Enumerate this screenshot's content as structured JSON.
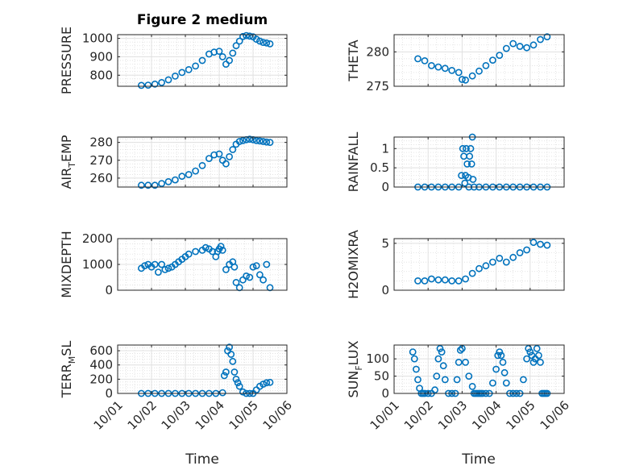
{
  "figure": {
    "title": "Figure 2 medium",
    "xlabel": "Time",
    "marker_color": "#0072BD",
    "x_ticks": [
      "10/01",
      "10/02",
      "10/03",
      "10/04",
      "10/05",
      "10/06"
    ]
  },
  "chart_data": [
    {
      "type": "scatter",
      "ylabel": "PRESSURE",
      "ylabel_main": "PRESSURE",
      "ylabel_sub": "",
      "ylabel_tail": "",
      "title": "Figure 2 medium",
      "ylim": [
        740,
        1020
      ],
      "yticks": [
        800,
        900,
        1000
      ],
      "xlim": [
        "10/01",
        "10/06"
      ],
      "grid": true,
      "series": [
        {
          "x": [
            1.7,
            1.9,
            2.1,
            2.3,
            2.5,
            2.7,
            2.9,
            3.1,
            3.3,
            3.5,
            3.7,
            3.85,
            4.0,
            4.1,
            4.2,
            4.3,
            4.4,
            4.5,
            4.6,
            4.7,
            4.8,
            4.9,
            5.0,
            5.1,
            5.2,
            5.3,
            5.4,
            5.5
          ],
          "y": [
            745,
            746,
            752,
            760,
            775,
            795,
            815,
            830,
            850,
            880,
            915,
            925,
            930,
            900,
            860,
            880,
            920,
            960,
            985,
            1010,
            1015,
            1012,
            1008,
            995,
            985,
            978,
            975,
            970
          ]
        }
      ]
    },
    {
      "type": "scatter",
      "ylabel": "THETA",
      "ylabel_main": "THETA",
      "ylabel_sub": "",
      "ylabel_tail": "",
      "ylim": [
        275,
        282.5
      ],
      "yticks": [
        275,
        280
      ],
      "xlim": [
        "10/01",
        "10/06"
      ],
      "grid": true,
      "series": [
        {
          "x": [
            1.7,
            1.9,
            2.1,
            2.3,
            2.5,
            2.7,
            2.9,
            3.0,
            3.1,
            3.3,
            3.5,
            3.7,
            3.9,
            4.1,
            4.3,
            4.5,
            4.7,
            4.9,
            5.1,
            5.3,
            5.5
          ],
          "y": [
            279.0,
            278.7,
            278.0,
            277.8,
            277.6,
            277.3,
            277.0,
            276.0,
            275.9,
            276.5,
            277.2,
            278.0,
            278.8,
            279.5,
            280.5,
            281.2,
            280.8,
            280.6,
            281.0,
            281.8,
            282.2
          ]
        }
      ]
    },
    {
      "type": "scatter",
      "ylabel": "AIR_TEMP",
      "ylabel_main": "AIR",
      "ylabel_sub": "T",
      "ylabel_tail": "EMP",
      "ylim": [
        255,
        283
      ],
      "yticks": [
        260,
        270,
        280
      ],
      "xlim": [
        "10/01",
        "10/06"
      ],
      "grid": true,
      "series": [
        {
          "x": [
            1.7,
            1.9,
            2.1,
            2.3,
            2.5,
            2.7,
            2.9,
            3.1,
            3.3,
            3.5,
            3.7,
            3.85,
            4.0,
            4.1,
            4.2,
            4.3,
            4.4,
            4.5,
            4.6,
            4.7,
            4.8,
            4.9,
            5.0,
            5.1,
            5.2,
            5.3,
            5.4,
            5.5
          ],
          "y": [
            256,
            256,
            256,
            257,
            258,
            259,
            261,
            262,
            264,
            267,
            271,
            273,
            273.5,
            270,
            268,
            272,
            276,
            279,
            280.5,
            281,
            281.5,
            281.8,
            281.5,
            281,
            280.8,
            280.5,
            280.2,
            280
          ]
        }
      ]
    },
    {
      "type": "scatter",
      "ylabel": "RAINFALL",
      "ylabel_main": "RAINFALL",
      "ylabel_sub": "",
      "ylabel_tail": "",
      "ylim": [
        0,
        1.3
      ],
      "yticks": [
        0,
        0.5,
        1
      ],
      "xlim": [
        "10/01",
        "10/06"
      ],
      "grid": true,
      "series": [
        {
          "x": [
            1.7,
            1.9,
            2.1,
            2.3,
            2.5,
            2.7,
            2.9,
            2.98,
            3.02,
            3.05,
            3.08,
            3.1,
            3.12,
            3.15,
            3.18,
            3.2,
            3.22,
            3.25,
            3.28,
            3.3,
            3.32,
            3.35,
            3.5,
            3.7,
            3.9,
            4.1,
            4.3,
            4.5,
            4.7,
            4.9,
            5.1,
            5.3,
            5.5
          ],
          "y": [
            0,
            0,
            0,
            0,
            0,
            0,
            0,
            0.3,
            1.0,
            0.8,
            0.1,
            0.3,
            1.0,
            0.6,
            0.25,
            0.0,
            0.8,
            1.0,
            0.6,
            1.3,
            0.2,
            0.0,
            0,
            0,
            0,
            0,
            0,
            0,
            0,
            0,
            0,
            0,
            0
          ]
        }
      ]
    },
    {
      "type": "scatter",
      "ylabel": "MIXDEPTH",
      "ylabel_main": "MIXDEPTH",
      "ylabel_sub": "",
      "ylabel_tail": "",
      "ylim": [
        0,
        2000
      ],
      "yticks": [
        0,
        1000,
        2000
      ],
      "xlim": [
        "10/01",
        "10/06"
      ],
      "grid": true,
      "series": [
        {
          "x": [
            1.7,
            1.8,
            1.9,
            2.0,
            2.1,
            2.2,
            2.3,
            2.4,
            2.5,
            2.6,
            2.7,
            2.8,
            2.9,
            3.0,
            3.1,
            3.3,
            3.5,
            3.6,
            3.7,
            3.8,
            3.9,
            3.95,
            4.0,
            4.05,
            4.1,
            4.2,
            4.3,
            4.4,
            4.45,
            4.5,
            4.6,
            4.7,
            4.8,
            4.9,
            5.0,
            5.1,
            5.2,
            5.3,
            5.4,
            5.5
          ],
          "y": [
            850,
            950,
            1000,
            900,
            1000,
            700,
            1000,
            800,
            850,
            900,
            1000,
            1100,
            1200,
            1300,
            1400,
            1500,
            1550,
            1650,
            1600,
            1500,
            1300,
            1500,
            1600,
            1700,
            1550,
            800,
            1000,
            1100,
            900,
            300,
            100,
            400,
            550,
            500,
            900,
            950,
            600,
            400,
            1000,
            100
          ]
        }
      ]
    },
    {
      "type": "scatter",
      "ylabel": "H2OMIXRA",
      "ylabel_main": "H2OMIXRA",
      "ylabel_sub": "",
      "ylabel_tail": "",
      "ylim": [
        0,
        5.5
      ],
      "yticks": [
        0,
        5
      ],
      "xlim": [
        "10/01",
        "10/06"
      ],
      "grid": true,
      "series": [
        {
          "x": [
            1.7,
            1.9,
            2.1,
            2.3,
            2.5,
            2.7,
            2.9,
            3.1,
            3.3,
            3.5,
            3.7,
            3.9,
            4.1,
            4.3,
            4.5,
            4.7,
            4.9,
            5.1,
            5.3,
            5.5
          ],
          "y": [
            1.0,
            1.0,
            1.2,
            1.1,
            1.1,
            1.0,
            1.0,
            1.2,
            1.8,
            2.3,
            2.6,
            3.0,
            3.4,
            3.0,
            3.5,
            4.0,
            4.3,
            5.1,
            4.9,
            4.8
          ]
        }
      ]
    },
    {
      "type": "scatter",
      "ylabel": "TERR_MSL",
      "ylabel_main": "TERR",
      "ylabel_sub": "M",
      "ylabel_tail": "SL",
      "ylim": [
        0,
        680
      ],
      "yticks": [
        0,
        200,
        400,
        600
      ],
      "xlim": [
        "10/01",
        "10/06"
      ],
      "grid": true,
      "series": [
        {
          "x": [
            1.7,
            1.9,
            2.1,
            2.3,
            2.5,
            2.7,
            2.9,
            3.1,
            3.3,
            3.5,
            3.7,
            3.9,
            4.1,
            4.15,
            4.2,
            4.25,
            4.3,
            4.35,
            4.4,
            4.45,
            4.5,
            4.55,
            4.6,
            4.7,
            4.8,
            4.9,
            5.0,
            5.1,
            5.2,
            5.3,
            5.4,
            5.5
          ],
          "y": [
            0,
            0,
            0,
            0,
            0,
            0,
            0,
            0,
            0,
            0,
            0,
            0,
            10,
            250,
            300,
            600,
            650,
            550,
            450,
            300,
            200,
            150,
            100,
            20,
            0,
            0,
            0,
            50,
            100,
            130,
            150,
            155
          ]
        }
      ]
    },
    {
      "type": "scatter",
      "ylabel": "SUN_FLUX",
      "ylabel_main": "SUN",
      "ylabel_sub": "F",
      "ylabel_tail": "LUX",
      "ylim": [
        0,
        140
      ],
      "yticks": [
        0,
        50,
        100
      ],
      "xlim": [
        "10/01",
        "10/06"
      ],
      "grid": true,
      "series": [
        {
          "x": [
            1.55,
            1.6,
            1.65,
            1.7,
            1.75,
            1.8,
            1.85,
            1.9,
            2.0,
            2.1,
            2.2,
            2.25,
            2.3,
            2.35,
            2.4,
            2.45,
            2.5,
            2.6,
            2.7,
            2.8,
            2.85,
            2.9,
            2.95,
            3.0,
            3.1,
            3.2,
            3.3,
            3.35,
            3.4,
            3.45,
            3.5,
            3.55,
            3.6,
            3.7,
            3.8,
            3.9,
            4.0,
            4.05,
            4.1,
            4.15,
            4.2,
            4.25,
            4.3,
            4.4,
            4.5,
            4.6,
            4.7,
            4.8,
            4.9,
            4.95,
            5.0,
            5.05,
            5.1,
            5.15,
            5.2,
            5.25,
            5.3,
            5.35,
            5.4,
            5.45,
            5.5
          ],
          "y": [
            120,
            100,
            70,
            40,
            15,
            0,
            0,
            0,
            0,
            0,
            10,
            50,
            100,
            130,
            120,
            80,
            40,
            0,
            0,
            0,
            40,
            90,
            125,
            130,
            90,
            50,
            20,
            0,
            0,
            0,
            0,
            0,
            0,
            0,
            0,
            30,
            70,
            110,
            120,
            110,
            90,
            60,
            30,
            0,
            0,
            0,
            0,
            40,
            100,
            130,
            120,
            110,
            90,
            100,
            130,
            110,
            90,
            0,
            0,
            0,
            0
          ]
        }
      ]
    }
  ]
}
